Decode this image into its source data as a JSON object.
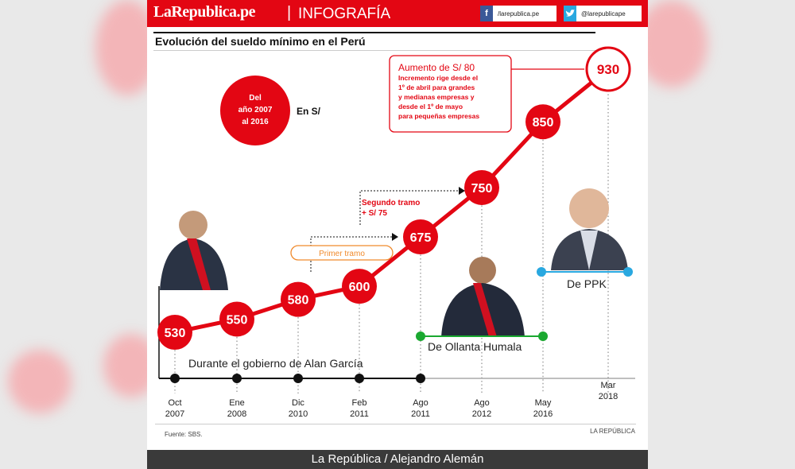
{
  "header": {
    "logo": "LaRepublica.pe",
    "separator": "|",
    "section": "INFOGRAFÍA",
    "facebook": "/larepublica.pe",
    "twitter": "@larepublicape",
    "facebook_icon": "f",
    "twitter_icon": "bird-icon"
  },
  "title": "Evolución del sueldo mínimo en el Perú",
  "period_badge": {
    "line1": "Del",
    "line2": "año 2007",
    "line3": "al 2016"
  },
  "unit": "En S/",
  "annotations": {
    "increase_title": "Aumento de S/ 80",
    "increase_lines": [
      "Incremento rige desde el",
      "1º de abril para grandes",
      "y medianas empresas y",
      "desde el 1º de mayo",
      "para pequeñas empresas"
    ],
    "first_stage": "Primer tramo",
    "second_stage_1": "Segundo tramo",
    "second_stage_2": "+ S/ 75",
    "garcia": "Durante el gobierno de Alan García",
    "humala": "De Ollanta Humala",
    "ppk": "De PPK"
  },
  "chart_data": {
    "type": "line",
    "categories": [
      "Oct 2007",
      "Ene 2008",
      "Dic 2010",
      "Feb 2011",
      "Ago 2011",
      "Ago 2012",
      "May 2016",
      "Mar 2018"
    ],
    "tick_labels": [
      [
        "Oct",
        "2007"
      ],
      [
        "Ene",
        "2008"
      ],
      [
        "Dic",
        "2010"
      ],
      [
        "Feb",
        "2011"
      ],
      [
        "Ago",
        "2011"
      ],
      [
        "Ago",
        "2012"
      ],
      [
        "May",
        "2016"
      ],
      [
        "Mar",
        "2018"
      ]
    ],
    "values": [
      530,
      550,
      580,
      600,
      675,
      750,
      850,
      930
    ],
    "colors": {
      "line": "#e30613",
      "highlight_fill": "#ffffff",
      "garcia": "#111111",
      "humala": "#1aa830",
      "ppk": "#29a8e0"
    }
  },
  "footer": {
    "source": "Fuente: SBS.",
    "brand": "LA REPÚBLICA",
    "credit": "La República / Alejandro Alemán"
  }
}
